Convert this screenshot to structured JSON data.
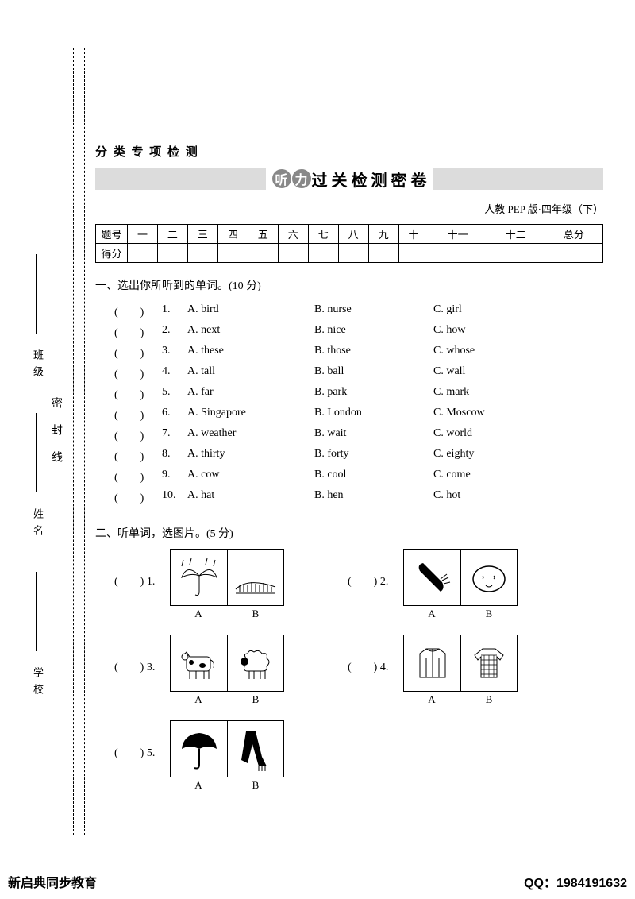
{
  "binding": {
    "school": "学校",
    "name": "姓名",
    "class": "班级",
    "seal": "密封线"
  },
  "category": "分 类 专 项 检 测",
  "title": {
    "c1": "听",
    "c2": "力",
    "rest": "过 关 检 测 密 卷"
  },
  "subtitle": "人教 PEP 版·四年级（下）",
  "score": {
    "head": [
      "题号",
      "一",
      "二",
      "三",
      "四",
      "五",
      "六",
      "七",
      "八",
      "九",
      "十",
      "十一",
      "十二",
      "总分"
    ],
    "row2_label": "得分"
  },
  "section1": {
    "title": "一、选出你所听到的单词。(10 分)",
    "items": [
      {
        "n": "1.",
        "a": "A. bird",
        "b": "B. nurse",
        "c": "C. girl"
      },
      {
        "n": "2.",
        "a": "A. next",
        "b": "B. nice",
        "c": "C. how"
      },
      {
        "n": "3.",
        "a": "A. these",
        "b": "B. those",
        "c": "C. whose"
      },
      {
        "n": "4.",
        "a": "A. tall",
        "b": "B. ball",
        "c": "C. wall"
      },
      {
        "n": "5.",
        "a": "A. far",
        "b": "B. park",
        "c": "C. mark"
      },
      {
        "n": "6.",
        "a": "A. Singapore",
        "b": "B. London",
        "c": "C. Moscow"
      },
      {
        "n": "7.",
        "a": "A. weather",
        "b": "B. wait",
        "c": "C. world"
      },
      {
        "n": "8.",
        "a": "A. thirty",
        "b": "B. forty",
        "c": "C. eighty"
      },
      {
        "n": "9.",
        "a": "A. cow",
        "b": "B. cool",
        "c": "C. come"
      },
      {
        "n": "10.",
        "a": "A. hat",
        "b": "B. hen",
        "c": "C. hot"
      }
    ]
  },
  "section2": {
    "title": "二、听单词，选图片。(5 分)",
    "labelA": "A",
    "labelB": "B",
    "items": [
      {
        "n": "1.",
        "a_icon": "umbrella-rain",
        "b_icon": "field"
      },
      {
        "n": "2.",
        "a_icon": "carrot",
        "b_icon": "potato"
      },
      {
        "n": "3.",
        "a_icon": "cow",
        "b_icon": "sheep"
      },
      {
        "n": "4.",
        "a_icon": "jacket",
        "b_icon": "sweater"
      },
      {
        "n": "5.",
        "a_icon": "umbrella",
        "b_icon": "scarf"
      }
    ]
  },
  "footer": {
    "left": "新启典同步教育",
    "right": "QQ：1984191632"
  }
}
